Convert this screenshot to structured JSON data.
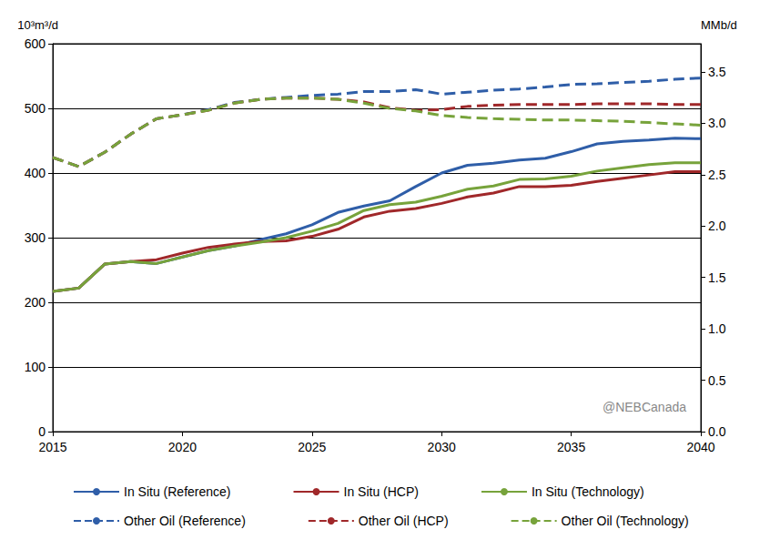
{
  "chart_data": {
    "type": "line",
    "y_label": "10³m³/d",
    "y2_label": "MMb/d",
    "annotation": "@NEBCanada",
    "x": [
      2015,
      2016,
      2017,
      2018,
      2019,
      2020,
      2021,
      2022,
      2023,
      2024,
      2025,
      2026,
      2027,
      2028,
      2029,
      2030,
      2031,
      2032,
      2033,
      2034,
      2035,
      2036,
      2037,
      2038,
      2039,
      2040
    ],
    "xlim": [
      2015,
      2040
    ],
    "xticks": [
      2015,
      2020,
      2025,
      2030,
      2035,
      2040
    ],
    "ylim": [
      0,
      600
    ],
    "yticks": [
      0,
      100,
      200,
      300,
      400,
      500,
      600
    ],
    "y2lim": [
      0,
      3.774
    ],
    "y2ticks": [
      {
        "value": 0,
        "label": "0.0"
      },
      {
        "value": 0.5,
        "label": "0.5"
      },
      {
        "value": 1,
        "label": "1.0"
      },
      {
        "value": 1.5,
        "label": "1.5"
      },
      {
        "value": 2,
        "label": "2.0"
      },
      {
        "value": 2.5,
        "label": "2.5"
      },
      {
        "value": 3,
        "label": "3.0"
      },
      {
        "value": 3.5,
        "label": "3.5"
      }
    ],
    "grid": true,
    "legend": "bottom",
    "series": [
      {
        "name": "In Situ (Reference)",
        "color": "#2f5ea8",
        "line_style": "solid",
        "values": [
          217,
          222,
          259,
          263,
          260,
          270,
          280,
          287,
          297,
          306,
          320,
          339,
          349,
          357,
          379,
          400,
          412,
          415,
          420,
          423,
          433,
          445,
          449,
          451,
          454,
          453
        ]
      },
      {
        "name": "In Situ (HCP)",
        "color": "#a0282a",
        "line_style": "solid",
        "values": [
          217,
          222,
          259,
          263,
          266,
          276,
          285,
          290,
          294,
          295,
          302,
          313,
          332,
          341,
          345,
          353,
          363,
          369,
          379,
          379,
          381,
          387,
          392,
          397,
          402,
          402
        ]
      },
      {
        "name": "In Situ (Technology)",
        "color": "#77a33b",
        "line_style": "solid",
        "values": [
          217,
          222,
          259,
          263,
          260,
          270,
          280,
          287,
          293,
          300,
          310,
          322,
          342,
          351,
          355,
          364,
          375,
          380,
          390,
          391,
          395,
          403,
          408,
          413,
          416,
          416
        ]
      },
      {
        "name": "Other Oil (Reference)",
        "color": "#2f5ea8",
        "line_style": "dashed",
        "values": [
          424,
          410,
          432,
          460,
          484,
          490,
          498,
          509,
          514,
          517,
          520,
          522,
          526,
          526,
          529,
          522,
          525,
          528,
          530,
          533,
          537,
          538,
          540,
          542,
          545,
          547
        ]
      },
      {
        "name": "Other Oil (HCP)",
        "color": "#a0282a",
        "line_style": "dashed",
        "values": [
          424,
          410,
          432,
          460,
          484,
          490,
          497,
          508,
          514,
          516,
          516,
          514,
          510,
          501,
          497,
          498,
          503,
          505,
          506,
          506,
          506,
          507,
          507,
          507,
          506,
          506
        ]
      },
      {
        "name": "Other Oil (Technology)",
        "color": "#77a33b",
        "line_style": "dashed",
        "values": [
          424,
          410,
          432,
          460,
          484,
          490,
          497,
          508,
          514,
          516,
          516,
          514,
          508,
          500,
          496,
          489,
          486,
          484,
          483,
          482,
          482,
          481,
          480,
          478,
          476,
          474
        ]
      }
    ]
  }
}
